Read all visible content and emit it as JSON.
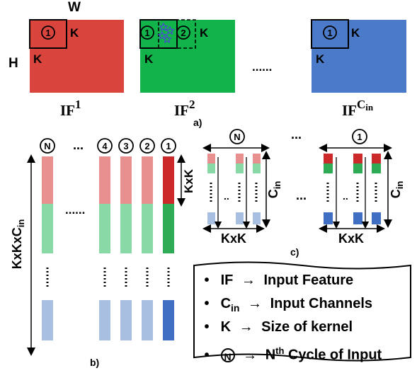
{
  "part_a": {
    "width_label": "W",
    "height_label": "H",
    "kernel_label": "K",
    "dots": "......",
    "caption": "a)",
    "maps": [
      {
        "name": "IF",
        "sup": "1",
        "color": "#d9453d",
        "windows": [
          "1"
        ]
      },
      {
        "name": "IF",
        "sup": "2",
        "color": "#12b34b",
        "windows": [
          "1",
          "2"
        ],
        "stars": true
      },
      {
        "name": "IF",
        "sup": "C",
        "sup_sub": "in",
        "color": "#4a7ac8",
        "windows": [
          "1"
        ]
      }
    ]
  },
  "part_b": {
    "column_labels": [
      "N",
      "...",
      "4",
      "3",
      "2",
      "1"
    ],
    "dots": "......",
    "height_label": "KxKxC",
    "height_label_sub": "in",
    "kxk_label": "KxK",
    "caption": "b)"
  },
  "part_c": {
    "groups": [
      {
        "label": "N",
        "cin_label": "C",
        "cin_sub": "in",
        "kxk_label": "KxK",
        "dark": false
      },
      {
        "label": "1",
        "cin_label": "C",
        "cin_sub": "in",
        "kxk_label": "KxK",
        "dark": true
      }
    ],
    "ellipsis_top": "...",
    "ellipsis_mid": "...",
    "caption": "c)"
  },
  "legend": {
    "items": [
      {
        "bullet": "•",
        "term": "IF",
        "arrow": "→",
        "desc": "Input Feature"
      },
      {
        "bullet": "•",
        "term": "C",
        "term_sub": "in",
        "arrow": "→",
        "desc": "Input Channels"
      },
      {
        "bullet": "•",
        "term": "K",
        "arrow": "→",
        "desc": "Size of kernel"
      },
      {
        "bullet": "•",
        "term": "N",
        "term_circled": true,
        "arrow": "→",
        "desc_pre": "N",
        "desc_sup": "th",
        "desc": "Cycle of Input"
      }
    ]
  },
  "colors": {
    "red": "#d9453d",
    "green": "#12b34b",
    "blue": "#4a7ac8",
    "light_red": "#e89090",
    "light_green": "#88d9a6",
    "light_blue": "#a9bfe2",
    "dark_red": "#cc2a2a",
    "dark_green": "#2faa55",
    "dark_blue": "#3f6ec2"
  }
}
